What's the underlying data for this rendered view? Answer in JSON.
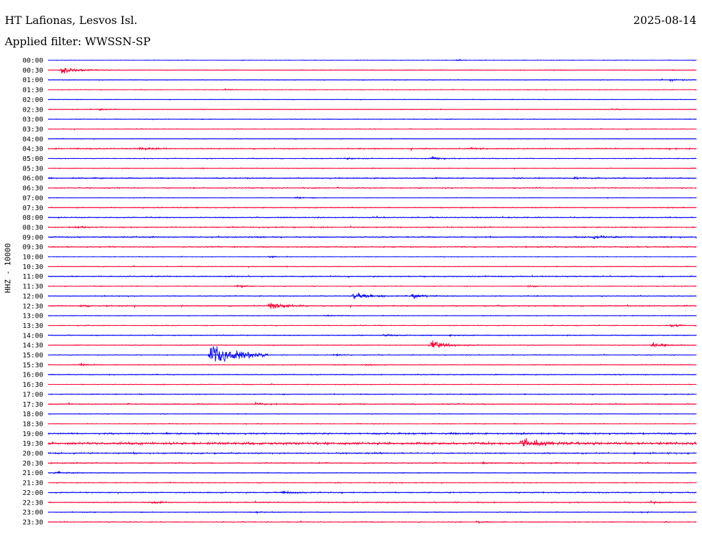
{
  "header": {
    "station": "HT Lafionas, Lesvos Isl.",
    "date": "2025-08-14",
    "filter": "Applied filter: WWSSN-SP",
    "channel": "HHZ - 10000"
  },
  "chart_data": {
    "type": "helicorder",
    "title": "HT Lafionas, Lesvos Isl.",
    "ylabel": "HHZ - 10000",
    "row_labels": [
      "00:00",
      "00:30",
      "01:00",
      "01:30",
      "02:00",
      "02:30",
      "03:00",
      "03:30",
      "04:00",
      "04:30",
      "05:00",
      "05:30",
      "06:00",
      "06:30",
      "07:00",
      "07:30",
      "08:00",
      "08:30",
      "09:00",
      "09:30",
      "10:00",
      "10:30",
      "11:00",
      "11:30",
      "12:00",
      "12:30",
      "13:00",
      "13:30",
      "14:00",
      "14:30",
      "15:00",
      "15:30",
      "16:00",
      "16:30",
      "17:00",
      "17:30",
      "18:00",
      "18:30",
      "19:00",
      "19:30",
      "20:00",
      "20:30",
      "21:00",
      "21:30",
      "22:00",
      "22:30",
      "23:00",
      "23:30"
    ],
    "colors": [
      "#0000ff",
      "#ff0033"
    ],
    "noise": [
      0.5,
      0.6,
      0.6,
      0.6,
      0.5,
      0.6,
      0.6,
      0.6,
      0.6,
      1.0,
      0.7,
      0.7,
      1.1,
      0.9,
      0.5,
      0.8,
      0.9,
      1.0,
      1.1,
      1.0,
      0.6,
      0.6,
      1.0,
      0.7,
      0.8,
      1.0,
      0.6,
      0.7,
      0.8,
      0.7,
      0.7,
      0.7,
      0.8,
      0.6,
      0.8,
      0.9,
      0.6,
      0.7,
      1.4,
      2.2,
      1.2,
      1.0,
      0.7,
      0.8,
      1.0,
      0.9,
      0.7,
      0.8
    ],
    "events": [
      {
        "row": 0,
        "t": 0.63,
        "amp": 1.5
      },
      {
        "row": 1,
        "t": 0.02,
        "amp": 8
      },
      {
        "row": 1,
        "t": 0.78,
        "amp": 1.2
      },
      {
        "row": 2,
        "t": 0.96,
        "amp": 2.5
      },
      {
        "row": 3,
        "t": 0.27,
        "amp": 1.2
      },
      {
        "row": 5,
        "t": 0.08,
        "amp": 1.5
      },
      {
        "row": 5,
        "t": 0.87,
        "amp": 1.5
      },
      {
        "row": 9,
        "t": 0.14,
        "amp": 2.5
      },
      {
        "row": 9,
        "t": 0.65,
        "amp": 1.5
      },
      {
        "row": 10,
        "t": 0.46,
        "amp": 1.5
      },
      {
        "row": 10,
        "t": 0.59,
        "amp": 3
      },
      {
        "row": 12,
        "t": 0.81,
        "amp": 2
      },
      {
        "row": 14,
        "t": 0.38,
        "amp": 2
      },
      {
        "row": 17,
        "t": 0.04,
        "amp": 2
      },
      {
        "row": 18,
        "t": 0.84,
        "amp": 4.5
      },
      {
        "row": 20,
        "t": 0.34,
        "amp": 1.5
      },
      {
        "row": 23,
        "t": 0.29,
        "amp": 2.5
      },
      {
        "row": 23,
        "t": 0.74,
        "amp": 1.5
      },
      {
        "row": 24,
        "t": 0.47,
        "amp": 6.5
      },
      {
        "row": 24,
        "t": 0.56,
        "amp": 5
      },
      {
        "row": 25,
        "t": 0.05,
        "amp": 1.5
      },
      {
        "row": 25,
        "t": 0.34,
        "amp": 7.5
      },
      {
        "row": 26,
        "t": 0.43,
        "amp": 1.2
      },
      {
        "row": 27,
        "t": 0.96,
        "amp": 3.5
      },
      {
        "row": 28,
        "t": 0.52,
        "amp": 2
      },
      {
        "row": 28,
        "t": 0.62,
        "amp": 1.5
      },
      {
        "row": 29,
        "t": 0.59,
        "amp": 9
      },
      {
        "row": 29,
        "t": 0.93,
        "amp": 5
      },
      {
        "row": 30,
        "t": 0.25,
        "amp": 24
      },
      {
        "row": 30,
        "t": 0.44,
        "amp": 1.5
      },
      {
        "row": 31,
        "t": 0.05,
        "amp": 3
      },
      {
        "row": 31,
        "t": 0.49,
        "amp": 1.2
      },
      {
        "row": 35,
        "t": 0.32,
        "amp": 2
      },
      {
        "row": 39,
        "t": 0.73,
        "amp": 13
      },
      {
        "row": 41,
        "t": 0.67,
        "amp": 1.5
      },
      {
        "row": 42,
        "t": 0.01,
        "amp": 2.5
      },
      {
        "row": 44,
        "t": 0.36,
        "amp": 3
      },
      {
        "row": 45,
        "t": 0.16,
        "amp": 2
      },
      {
        "row": 45,
        "t": 0.93,
        "amp": 2
      },
      {
        "row": 46,
        "t": 0.32,
        "amp": 1.5
      },
      {
        "row": 46,
        "t": 0.91,
        "amp": 1.2
      },
      {
        "row": 47,
        "t": 0.66,
        "amp": 1.5
      }
    ]
  }
}
